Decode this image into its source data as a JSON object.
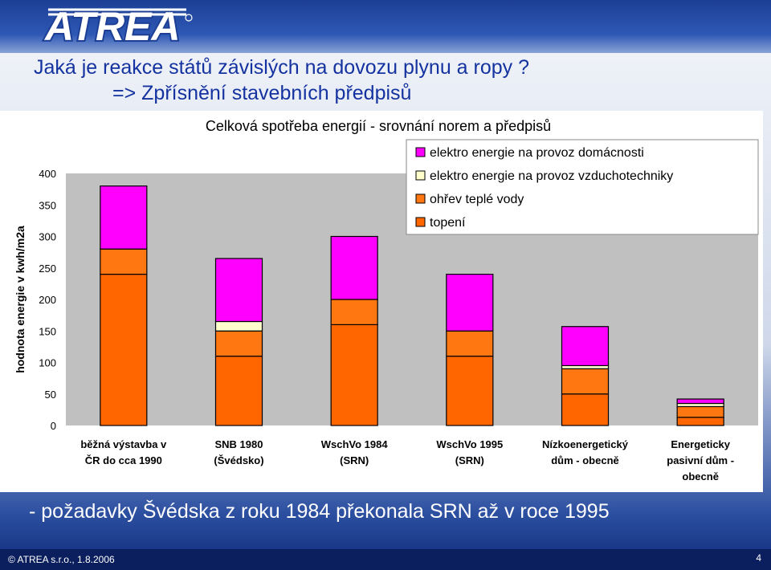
{
  "brand": {
    "logo_text": "ATREA"
  },
  "slide": {
    "title_line1": "Jaká je reakce států závislých na dovozu plynu a ropy ?",
    "title_line2": "=>  Zpřísnění stavebních předpisů",
    "bottom_note": "- požadavky Švédska z roku 1984 překonala SRN až v roce 1995"
  },
  "footer": {
    "copyright": "© ATREA s.r.o., 1.8.2006",
    "page_number": "4"
  },
  "colors": {
    "electricity_household": "#ff00ff",
    "electricity_ventilation": "#ffffcc",
    "hot_water": "#ff7711",
    "heating": "#ff6600"
  },
  "chart_data": {
    "type": "bar",
    "stacked": true,
    "title": "Celková spotřeba energií - srovnání norem a předpisů",
    "ylabel": "hodnota energie v kwh/m2a",
    "xlabel": "",
    "ylim": [
      0,
      400
    ],
    "yticks": [
      0,
      50,
      100,
      150,
      200,
      250,
      300,
      350,
      400
    ],
    "grid": false,
    "legend_position": "top-right",
    "categories": [
      [
        "běžná výstavba v",
        "ČR do cca 1990"
      ],
      [
        "SNB 1980",
        "(Švédsko)"
      ],
      [
        "WschVo 1984",
        "(SRN)"
      ],
      [
        "WschVo 1995",
        "(SRN)"
      ],
      [
        "Nízkoenergetický",
        "dům - obecně"
      ],
      [
        "Energeticky",
        "pasivní dům -",
        "obecně"
      ]
    ],
    "series": [
      {
        "name": "topení",
        "colorKey": "heating",
        "values": [
          240,
          110,
          160,
          110,
          50,
          13
        ]
      },
      {
        "name": "ohřev teplé vody",
        "colorKey": "hot_water",
        "values": [
          40,
          40,
          40,
          40,
          40,
          17
        ]
      },
      {
        "name": "elektro energie na provoz vzduchotechniky",
        "colorKey": "electricity_ventilation",
        "values": [
          0,
          15,
          0,
          0,
          5,
          5
        ]
      },
      {
        "name": "elektro energie na provoz domácnosti",
        "colorKey": "electricity_household",
        "values": [
          100,
          100,
          100,
          90,
          62,
          7
        ]
      }
    ],
    "legend_order": [
      "elektro energie na provoz domácnosti",
      "elektro energie na provoz vzduchotechniky",
      "ohřev teplé vody",
      "topení"
    ]
  }
}
